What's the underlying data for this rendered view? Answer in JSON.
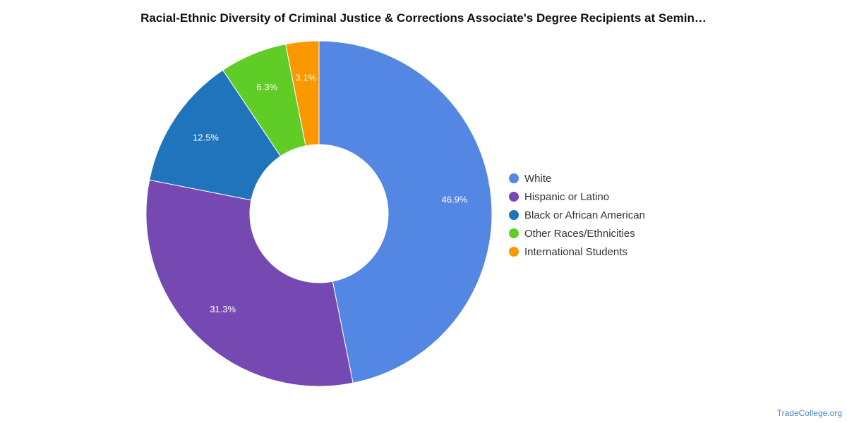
{
  "chart_data": {
    "type": "pie",
    "title": "Racial-Ethnic Diversity of Criminal Justice & Corrections Associate's Degree Recipients at Semin…",
    "categories": [
      "White",
      "Hispanic or Latino",
      "Black or African American",
      "Other Races/Ethnicities",
      "International Students"
    ],
    "values": [
      46.9,
      31.3,
      12.5,
      6.3,
      3.1
    ],
    "labels": [
      "46.9%",
      "31.3%",
      "12.5%",
      "6.3%",
      "3.1%"
    ],
    "colors": [
      "#5387e3",
      "#7649b2",
      "#1f74bb",
      "#60cc26",
      "#fb9800"
    ],
    "donut": true,
    "legend_position": "right"
  },
  "source": "TradeCollege.org"
}
